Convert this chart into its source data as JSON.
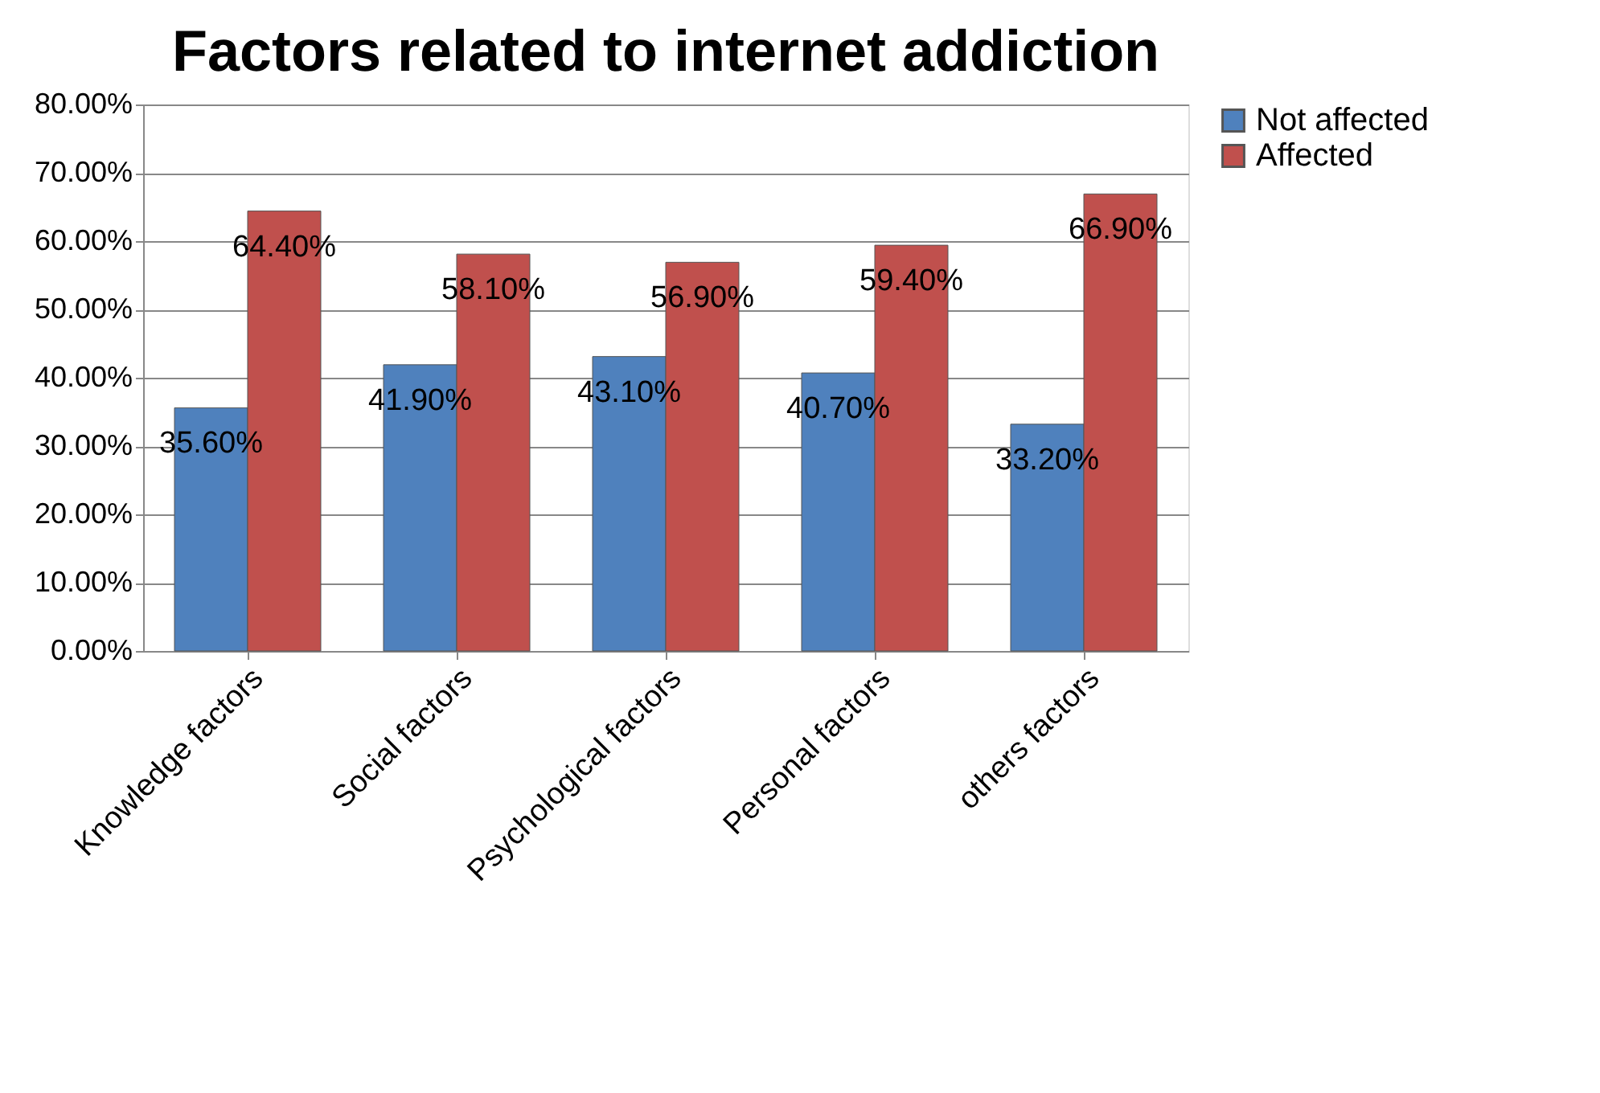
{
  "chart_data": {
    "type": "bar",
    "title": "Factors related to internet addiction",
    "categories": [
      "Knowledge factors",
      "Social factors",
      "Psychological factors",
      "Personal factors",
      "others factors"
    ],
    "series": [
      {
        "name": "Not affected",
        "color": "#4f81bd",
        "values": [
          35.6,
          41.9,
          43.1,
          40.7,
          33.2
        ],
        "value_labels": [
          "35.60%",
          "41.90%",
          "43.10%",
          "40.70%",
          "33.20%"
        ]
      },
      {
        "name": "Affected",
        "color": "#c0504d",
        "values": [
          64.4,
          58.1,
          56.9,
          59.4,
          66.9
        ],
        "value_labels": [
          "64.40%",
          "58.10%",
          "56.90%",
          "59.40%",
          "66.90%"
        ]
      }
    ],
    "ylim": [
      0,
      80
    ],
    "yticks": [
      {
        "value": 0,
        "label": "0.00%"
      },
      {
        "value": 10,
        "label": "10.00%"
      },
      {
        "value": 20,
        "label": "20.00%"
      },
      {
        "value": 30,
        "label": "30.00%"
      },
      {
        "value": 40,
        "label": "40.00%"
      },
      {
        "value": 50,
        "label": "50.00%"
      },
      {
        "value": 60,
        "label": "60.00%"
      },
      {
        "value": 70,
        "label": "70.00%"
      },
      {
        "value": 80,
        "label": "80.00%"
      }
    ],
    "grid": "y",
    "legend": "right"
  }
}
